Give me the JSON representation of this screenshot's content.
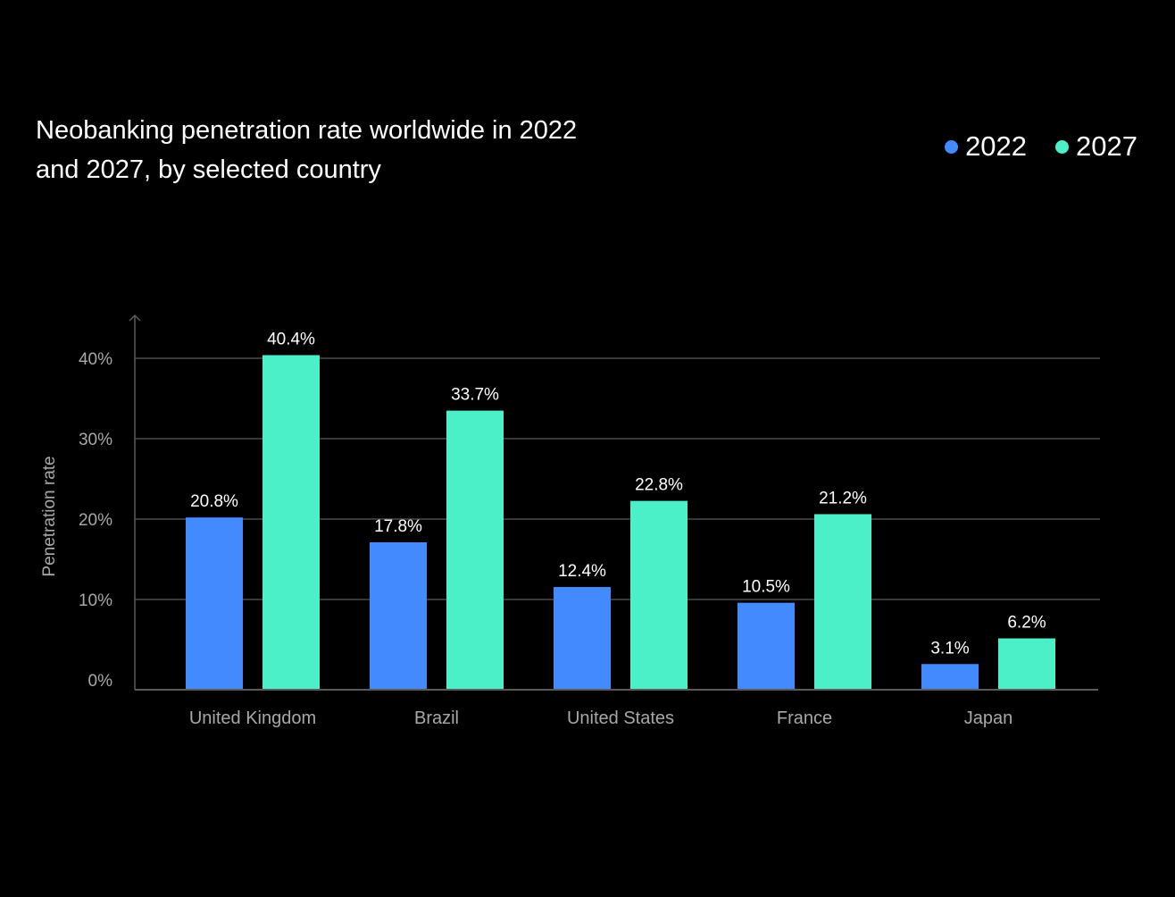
{
  "chart_data": {
    "type": "bar",
    "title": "Neobanking penetration rate worldwide in 2022 and 2027, by selected country",
    "ylabel": "Penetration rate",
    "xlabel": "",
    "categories": [
      "United Kingdom",
      "Brazil",
      "United States",
      "France",
      "Japan"
    ],
    "series": [
      {
        "name": "2022",
        "color": "#448AFF",
        "values": [
          20.8,
          17.8,
          12.4,
          10.5,
          3.1
        ],
        "labels": [
          "20.8%",
          "17.8%",
          "12.4%",
          "10.5%",
          "3.1%"
        ]
      },
      {
        "name": "2027",
        "color": "#4BEFC8",
        "values": [
          40.4,
          33.7,
          22.8,
          21.2,
          6.2
        ],
        "labels": [
          "40.4%",
          "33.7%",
          "22.8%",
          "21.2%",
          "6.2%"
        ]
      }
    ],
    "yticks": [
      0,
      10,
      20,
      30,
      40
    ],
    "ytick_labels": [
      "0%",
      "10%",
      "20%",
      "30%",
      "40%"
    ],
    "ylim": [
      0,
      40
    ],
    "grid": true,
    "legend_position": "top-right"
  }
}
